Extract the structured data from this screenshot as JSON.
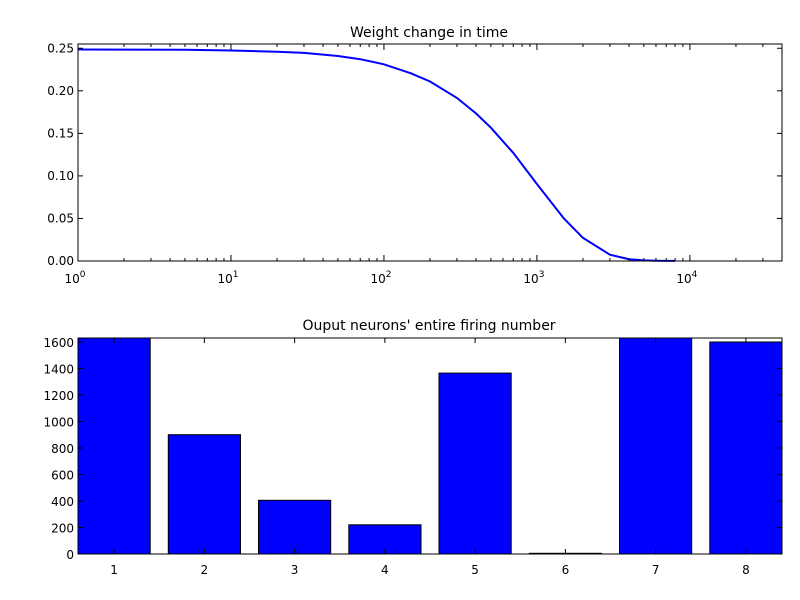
{
  "chart_data": [
    {
      "type": "line",
      "title": "Weight change in time",
      "xlabel": "",
      "ylabel": "",
      "xscale": "log",
      "xlim": [
        1,
        40000
      ],
      "ylim": [
        0,
        0.255
      ],
      "grid": false,
      "x_ticks": [
        {
          "base": "10",
          "exp": "0",
          "value": 1
        },
        {
          "base": "10",
          "exp": "1",
          "value": 10
        },
        {
          "base": "10",
          "exp": "2",
          "value": 100
        },
        {
          "base": "10",
          "exp": "3",
          "value": 1000
        },
        {
          "base": "10",
          "exp": "4",
          "value": 10000
        }
      ],
      "y_ticks": [
        "0.00",
        "0.05",
        "0.10",
        "0.15",
        "0.20",
        "0.25"
      ],
      "series": [
        {
          "color": "#0000ff",
          "x": [
            1,
            2,
            5,
            10,
            20,
            30,
            50,
            70,
            100,
            150,
            200,
            300,
            400,
            500,
            700,
            1000,
            1500,
            2000,
            3000,
            4000,
            5000,
            6000,
            7000,
            8000
          ],
          "y": [
            0.2485,
            0.2484,
            0.2482,
            0.2474,
            0.2458,
            0.2445,
            0.2409,
            0.2371,
            0.2311,
            0.2206,
            0.2109,
            0.1917,
            0.1733,
            0.1566,
            0.1272,
            0.0905,
            0.05,
            0.0271,
            0.0074,
            0.0021,
            0.0007,
            0.0003,
            0.0001,
            0.0001
          ]
        }
      ]
    },
    {
      "type": "bar",
      "title": "Ouput neurons' entire firing number",
      "xlabel": "",
      "ylabel": "",
      "categories": [
        "1",
        "2",
        "3",
        "4",
        "5",
        "6",
        "7",
        "8"
      ],
      "values": [
        1630,
        900,
        405,
        220,
        1365,
        5,
        1640,
        1600
      ],
      "ylim": [
        0,
        1630
      ],
      "grid": false,
      "y_ticks": [
        "0",
        "200",
        "400",
        "600",
        "800",
        "1000",
        "1200",
        "1400",
        "1600"
      ],
      "color": "#0000ff"
    }
  ]
}
